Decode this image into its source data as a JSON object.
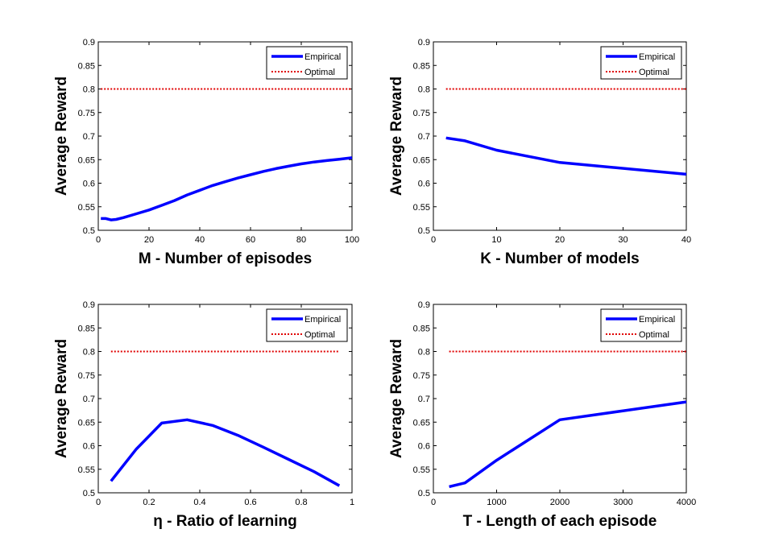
{
  "chart_data": [
    {
      "type": "line",
      "xlabel": "M - Number of episodes",
      "ylabel": "Average Reward",
      "xlim": [
        0,
        100
      ],
      "ylim": [
        0.5,
        0.9
      ],
      "xticks": [
        0,
        20,
        40,
        60,
        80,
        100
      ],
      "xtick_labels": [
        "0",
        "20",
        "40",
        "60",
        "80",
        "100"
      ],
      "yticks": [
        0.5,
        0.55,
        0.6,
        0.65,
        0.7,
        0.75,
        0.8,
        0.85,
        0.9
      ],
      "ytick_labels": [
        "0.5",
        "0.55",
        "0.6",
        "0.65",
        "0.7",
        "0.75",
        "0.8",
        "0.85",
        "0.9"
      ],
      "grid": false,
      "legend": "top-right",
      "series": [
        {
          "name": "Empirical",
          "color": "#0000ff",
          "style": "solid",
          "x": [
            1,
            3,
            5,
            7,
            10,
            15,
            20,
            25,
            30,
            35,
            40,
            45,
            50,
            55,
            60,
            65,
            70,
            75,
            80,
            85,
            90,
            95,
            100
          ],
          "y": [
            0.525,
            0.525,
            0.522,
            0.523,
            0.527,
            0.535,
            0.543,
            0.553,
            0.563,
            0.575,
            0.585,
            0.595,
            0.603,
            0.611,
            0.618,
            0.625,
            0.631,
            0.636,
            0.641,
            0.645,
            0.648,
            0.651,
            0.654
          ]
        },
        {
          "name": "Optimal",
          "color": "#e00000",
          "style": "dotted",
          "x": [
            1,
            100
          ],
          "y": [
            0.8,
            0.8
          ]
        }
      ]
    },
    {
      "type": "line",
      "xlabel": "K - Number of models",
      "ylabel": "Average Reward",
      "xlim": [
        0,
        40
      ],
      "ylim": [
        0.5,
        0.9
      ],
      "xticks": [
        0,
        10,
        20,
        30,
        40
      ],
      "xtick_labels": [
        "0",
        "10",
        "20",
        "30",
        "40"
      ],
      "yticks": [
        0.5,
        0.55,
        0.6,
        0.65,
        0.7,
        0.75,
        0.8,
        0.85,
        0.9
      ],
      "ytick_labels": [
        "0.5",
        "0.55",
        "0.6",
        "0.65",
        "0.7",
        "0.75",
        "0.8",
        "0.85",
        "0.9"
      ],
      "grid": false,
      "legend": "top-right",
      "series": [
        {
          "name": "Empirical",
          "color": "#0000ff",
          "style": "solid",
          "x": [
            2,
            5,
            10,
            20,
            40
          ],
          "y": [
            0.696,
            0.69,
            0.67,
            0.644,
            0.619
          ]
        },
        {
          "name": "Optimal",
          "color": "#e00000",
          "style": "dotted",
          "x": [
            2,
            40
          ],
          "y": [
            0.8,
            0.8
          ]
        }
      ]
    },
    {
      "type": "line",
      "xlabel": "η - Ratio of learning",
      "ylabel": "Average Reward",
      "xlim": [
        0,
        1
      ],
      "ylim": [
        0.5,
        0.9
      ],
      "xticks": [
        0,
        0.2,
        0.4,
        0.6,
        0.8,
        1
      ],
      "xtick_labels": [
        "0",
        "0.2",
        "0.4",
        "0.6",
        "0.8",
        "1"
      ],
      "yticks": [
        0.5,
        0.55,
        0.6,
        0.65,
        0.7,
        0.75,
        0.8,
        0.85,
        0.9
      ],
      "ytick_labels": [
        "0.5",
        "0.55",
        "0.6",
        "0.65",
        "0.7",
        "0.75",
        "0.8",
        "0.85",
        "0.9"
      ],
      "grid": false,
      "legend": "top-right",
      "series": [
        {
          "name": "Empirical",
          "color": "#0000ff",
          "style": "solid",
          "x": [
            0.05,
            0.15,
            0.25,
            0.35,
            0.45,
            0.55,
            0.65,
            0.75,
            0.85,
            0.95
          ],
          "y": [
            0.525,
            0.593,
            0.648,
            0.655,
            0.643,
            0.622,
            0.597,
            0.571,
            0.545,
            0.515
          ]
        },
        {
          "name": "Optimal",
          "color": "#e00000",
          "style": "dotted",
          "x": [
            0.05,
            0.95
          ],
          "y": [
            0.8,
            0.8
          ]
        }
      ]
    },
    {
      "type": "line",
      "xlabel": "T - Length of each episode",
      "ylabel": "Average Reward",
      "xlim": [
        0,
        4000
      ],
      "ylim": [
        0.5,
        0.9
      ],
      "xticks": [
        0,
        1000,
        2000,
        3000,
        4000
      ],
      "xtick_labels": [
        "0",
        "1000",
        "2000",
        "3000",
        "4000"
      ],
      "yticks": [
        0.5,
        0.55,
        0.6,
        0.65,
        0.7,
        0.75,
        0.8,
        0.85,
        0.9
      ],
      "ytick_labels": [
        "0.5",
        "0.55",
        "0.6",
        "0.65",
        "0.7",
        "0.75",
        "0.8",
        "0.85",
        "0.9"
      ],
      "grid": false,
      "legend": "top-right",
      "series": [
        {
          "name": "Empirical",
          "color": "#0000ff",
          "style": "solid",
          "x": [
            250,
            500,
            1000,
            2000,
            4000
          ],
          "y": [
            0.513,
            0.521,
            0.569,
            0.655,
            0.693
          ]
        },
        {
          "name": "Optimal",
          "color": "#e00000",
          "style": "dotted",
          "x": [
            250,
            4000
          ],
          "y": [
            0.8,
            0.8
          ]
        }
      ]
    }
  ]
}
